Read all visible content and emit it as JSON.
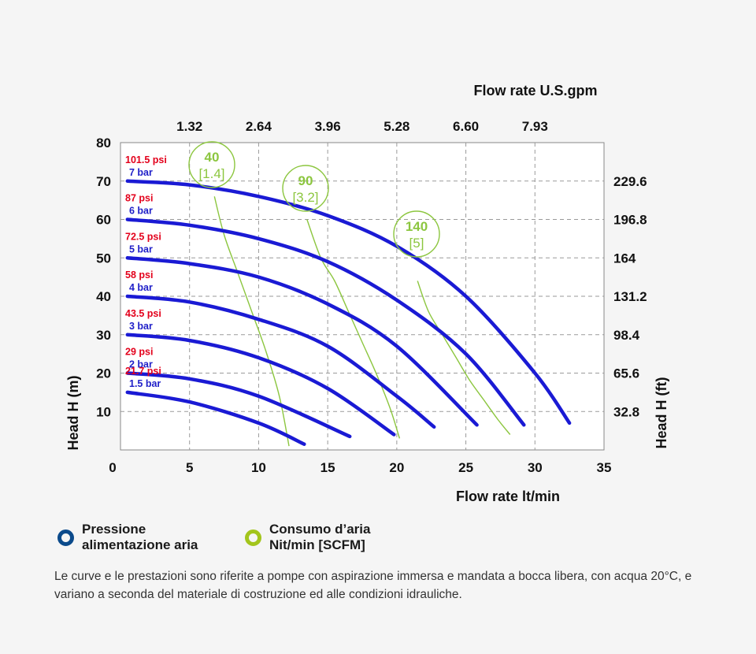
{
  "chart_data": {
    "type": "line",
    "x_label": "Flow rate lt/min",
    "x_top_label": "Flow rate U.S.gpm",
    "y_label": "Head H (m)",
    "y_right_label": "Head H (ft)",
    "xlim": [
      0,
      35
    ],
    "ylim": [
      0,
      80
    ],
    "x_ticks": [
      "0",
      "5",
      "10",
      "15",
      "20",
      "25",
      "30",
      "35"
    ],
    "x_top_ticks": [
      "1.32",
      "2.64",
      "3.96",
      "5.28",
      "6.60",
      "7.93"
    ],
    "y_ticks": [
      "10",
      "20",
      "30",
      "40",
      "50",
      "60",
      "70",
      "80"
    ],
    "y_right_ticks": [
      "32.8",
      "65.6",
      "98.4",
      "131.2",
      "164",
      "196.8",
      "229.6"
    ],
    "grid": true,
    "pressure_curves": [
      {
        "psi": "101.5 psi",
        "bar": "7 bar",
        "x": [
          0.5,
          5,
          10,
          15,
          20,
          25,
          30,
          32.5
        ],
        "y": [
          70,
          69,
          66,
          61,
          53,
          40,
          20,
          7
        ]
      },
      {
        "psi": "87 psi",
        "bar": "6 bar",
        "x": [
          0.5,
          5,
          10,
          15,
          20,
          25,
          29.2
        ],
        "y": [
          60,
          58.5,
          55,
          49,
          39,
          25,
          6.5
        ]
      },
      {
        "psi": "72.5 psi",
        "bar": "5 bar",
        "x": [
          0.5,
          5,
          10,
          15,
          20,
          25.8
        ],
        "y": [
          50,
          48.5,
          45,
          38,
          27,
          6.5
        ]
      },
      {
        "psi": "58 psi",
        "bar": "4 bar",
        "x": [
          0.5,
          5,
          10,
          15,
          20,
          22.7
        ],
        "y": [
          40,
          38.5,
          34,
          27,
          14,
          6
        ]
      },
      {
        "psi": "43.5 psi",
        "bar": "3 bar",
        "x": [
          0.5,
          5,
          10,
          15,
          19.8
        ],
        "y": [
          30,
          28.5,
          24,
          16,
          4
        ]
      },
      {
        "psi": "29 psi",
        "bar": "2 bar",
        "x": [
          0.5,
          5,
          10,
          16.6
        ],
        "y": [
          20,
          18.5,
          14,
          3.5
        ]
      },
      {
        "psi": "21.7 psi",
        "bar": "1.5 bar",
        "x": [
          0.5,
          5,
          10,
          13.3
        ],
        "y": [
          15,
          12.5,
          7,
          1.5
        ]
      }
    ],
    "air_consumption_curves": [
      {
        "value": "40",
        "scfm": "[1.4]",
        "x": [
          6.8,
          7.5,
          8.5,
          9.5,
          10.5,
          11.5,
          12.2
        ],
        "y": [
          66,
          56,
          46,
          36,
          26,
          14,
          1
        ]
      },
      {
        "value": "90",
        "scfm": "[3.2]",
        "x": [
          13.5,
          14.5,
          15.5,
          16.5,
          17.5,
          18.5,
          19.5,
          20.2
        ],
        "y": [
          60,
          50,
          44,
          36,
          28,
          20,
          11,
          3
        ]
      },
      {
        "value": "140",
        "scfm": "[5]",
        "x": [
          21.5,
          22.3,
          23.3,
          24.3,
          25.3,
          26.3,
          27.3,
          28.2
        ],
        "y": [
          44,
          36,
          30,
          24,
          18,
          13,
          8,
          4
        ]
      }
    ]
  },
  "legend": {
    "pressure": {
      "line1": "Pressione",
      "line2": "alimentazione aria",
      "color": "#0b4a8b"
    },
    "air": {
      "line1": "Consumo d’aria",
      "line2": "Nit/min [SCFM]",
      "color": "#a3c51c"
    }
  },
  "note": "Le curve e le prestazioni sono riferite a pompe con aspirazione immersa e mandata a bocca libera, con acqua  20°C, e variano a seconda del materiale di costruzione ed alle condizioni idrauliche."
}
